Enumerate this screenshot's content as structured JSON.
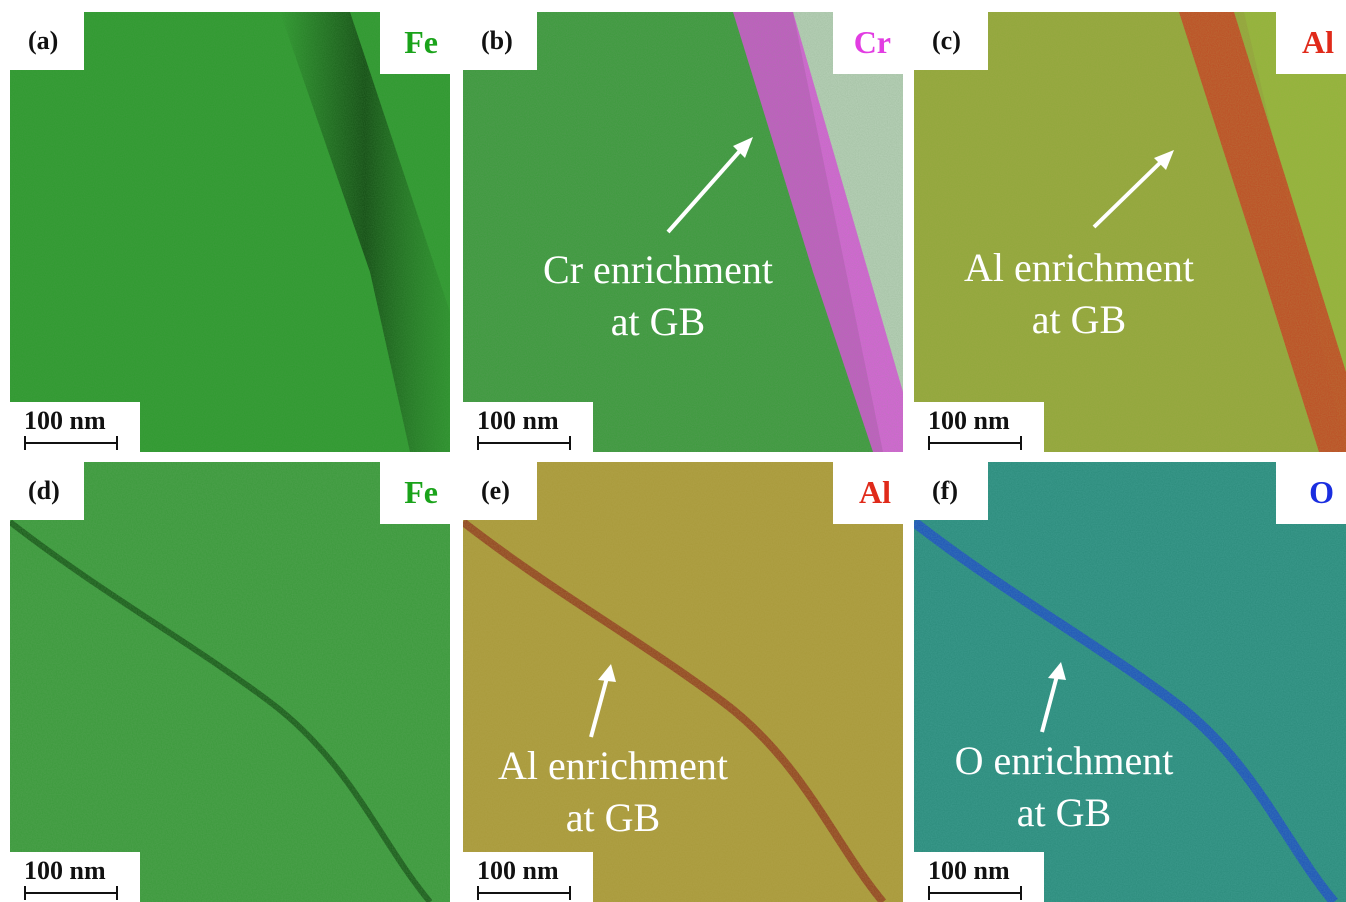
{
  "panels": [
    {
      "id": "a",
      "label": "(a)",
      "element": "Fe",
      "element_color": "#1aa31a",
      "scale_bar": "100 nm",
      "annotation": null,
      "colors": {
        "base": "#2e9a2e",
        "band": "#0c3c0c",
        "enrich": null
      }
    },
    {
      "id": "b",
      "label": "(b)",
      "element": "Cr",
      "element_color": "#e23de2",
      "scale_bar": "100 nm",
      "annotation": {
        "line1": "Cr enrichment",
        "line2": "at GB"
      },
      "colors": {
        "base": "#3a9a3a",
        "band": "#e04ce0",
        "enrich": "#c8d8c8"
      }
    },
    {
      "id": "c",
      "label": "(c)",
      "element": "Al",
      "element_color": "#e02a1a",
      "scale_bar": "100 nm",
      "annotation": {
        "line1": "Al enrichment",
        "line2": "at GB"
      },
      "colors": {
        "base": "#8fa83a",
        "band": "#c8321e",
        "enrich": "#90b83a"
      }
    },
    {
      "id": "d",
      "label": "(d)",
      "element": "Fe",
      "element_color": "#1aa31a",
      "scale_bar": "100 nm",
      "annotation": null,
      "colors": {
        "base": "#3a9a3a",
        "band": "#0f4a0f",
        "enrich": null
      }
    },
    {
      "id": "e",
      "label": "(e)",
      "element": "Al",
      "element_color": "#e02a1a",
      "scale_bar": "100 nm",
      "annotation": {
        "line1": "Al enrichment",
        "line2": "at GB"
      },
      "colors": {
        "base": "#a89a3a",
        "band": "#8a2a1a",
        "enrich": null
      }
    },
    {
      "id": "f",
      "label": "(f)",
      "element": "O",
      "element_color": "#1a2ee0",
      "scale_bar": "100 nm",
      "annotation": {
        "line1": "O enrichment",
        "line2": "at GB"
      },
      "colors": {
        "base": "#2a8a7a",
        "band": "#1a3ad0",
        "enrich": null
      }
    }
  ]
}
